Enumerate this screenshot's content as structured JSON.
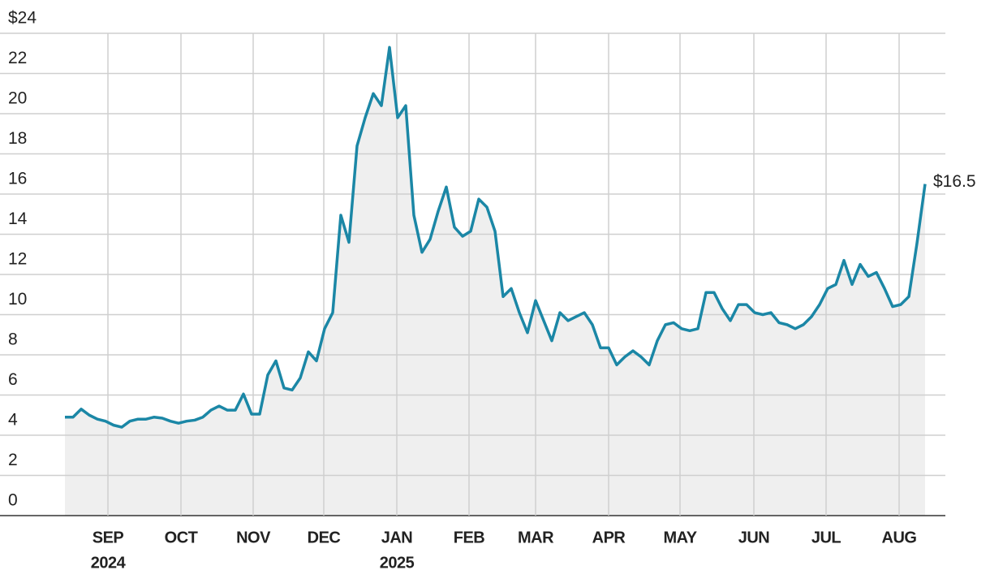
{
  "chart_data": {
    "type": "area-line",
    "values": [
      4.9,
      4.9,
      5.3,
      5.0,
      4.8,
      4.7,
      4.5,
      4.4,
      4.7,
      4.8,
      4.8,
      4.9,
      4.85,
      4.7,
      4.6,
      4.7,
      4.75,
      4.9,
      5.25,
      5.45,
      5.25,
      5.25,
      6.05,
      5.05,
      5.05,
      7.0,
      7.7,
      6.35,
      6.25,
      6.85,
      8.15,
      7.7,
      9.3,
      10.1,
      14.95,
      13.6,
      18.4,
      19.8,
      21.0,
      20.4,
      23.3,
      19.8,
      20.4,
      14.95,
      13.1,
      13.75,
      15.15,
      16.35,
      14.35,
      13.9,
      14.15,
      15.75,
      15.35,
      14.15,
      10.9,
      11.3,
      10.1,
      9.1,
      10.7,
      9.7,
      8.7,
      10.1,
      9.7,
      9.9,
      10.1,
      9.5,
      8.35,
      8.35,
      7.5,
      7.9,
      8.2,
      7.9,
      7.5,
      8.7,
      9.5,
      9.6,
      9.3,
      9.2,
      9.3,
      11.1,
      11.1,
      10.3,
      9.7,
      10.5,
      10.5,
      10.1,
      10.0,
      10.1,
      9.6,
      9.5,
      9.3,
      9.5,
      9.9,
      10.5,
      11.3,
      11.5,
      12.7,
      11.5,
      12.5,
      11.9,
      12.1,
      11.3,
      10.4,
      10.5,
      10.9,
      13.55,
      16.5
    ],
    "color": "#1b87a6",
    "fill": "#efefef",
    "annotation": "$16.5",
    "xlim": [
      0,
      106.3
    ],
    "xticks": [
      {
        "value": 5.3,
        "label": "SEP"
      },
      {
        "value": 14.3,
        "label": "OCT"
      },
      {
        "value": 23.2,
        "label": "NOV"
      },
      {
        "value": 31.9,
        "label": "DEC"
      },
      {
        "value": 40.9,
        "label": "JAN"
      },
      {
        "value": 49.8,
        "label": "FEB"
      },
      {
        "value": 58.0,
        "label": "MAR"
      },
      {
        "value": 67.0,
        "label": "APR"
      },
      {
        "value": 75.8,
        "label": "MAY"
      },
      {
        "value": 84.9,
        "label": "JUN"
      },
      {
        "value": 93.8,
        "label": "JUL"
      },
      {
        "value": 102.8,
        "label": "AUG"
      }
    ],
    "year_labels": [
      {
        "value": 5.3,
        "label": "2024"
      },
      {
        "value": 40.9,
        "label": "2025"
      }
    ],
    "ylim": [
      0,
      24
    ],
    "yticks": [
      0,
      2,
      4,
      6,
      8,
      10,
      12,
      14,
      16,
      18,
      20,
      22,
      {
        "value": 24,
        "label": "$24"
      }
    ],
    "grid": true
  }
}
